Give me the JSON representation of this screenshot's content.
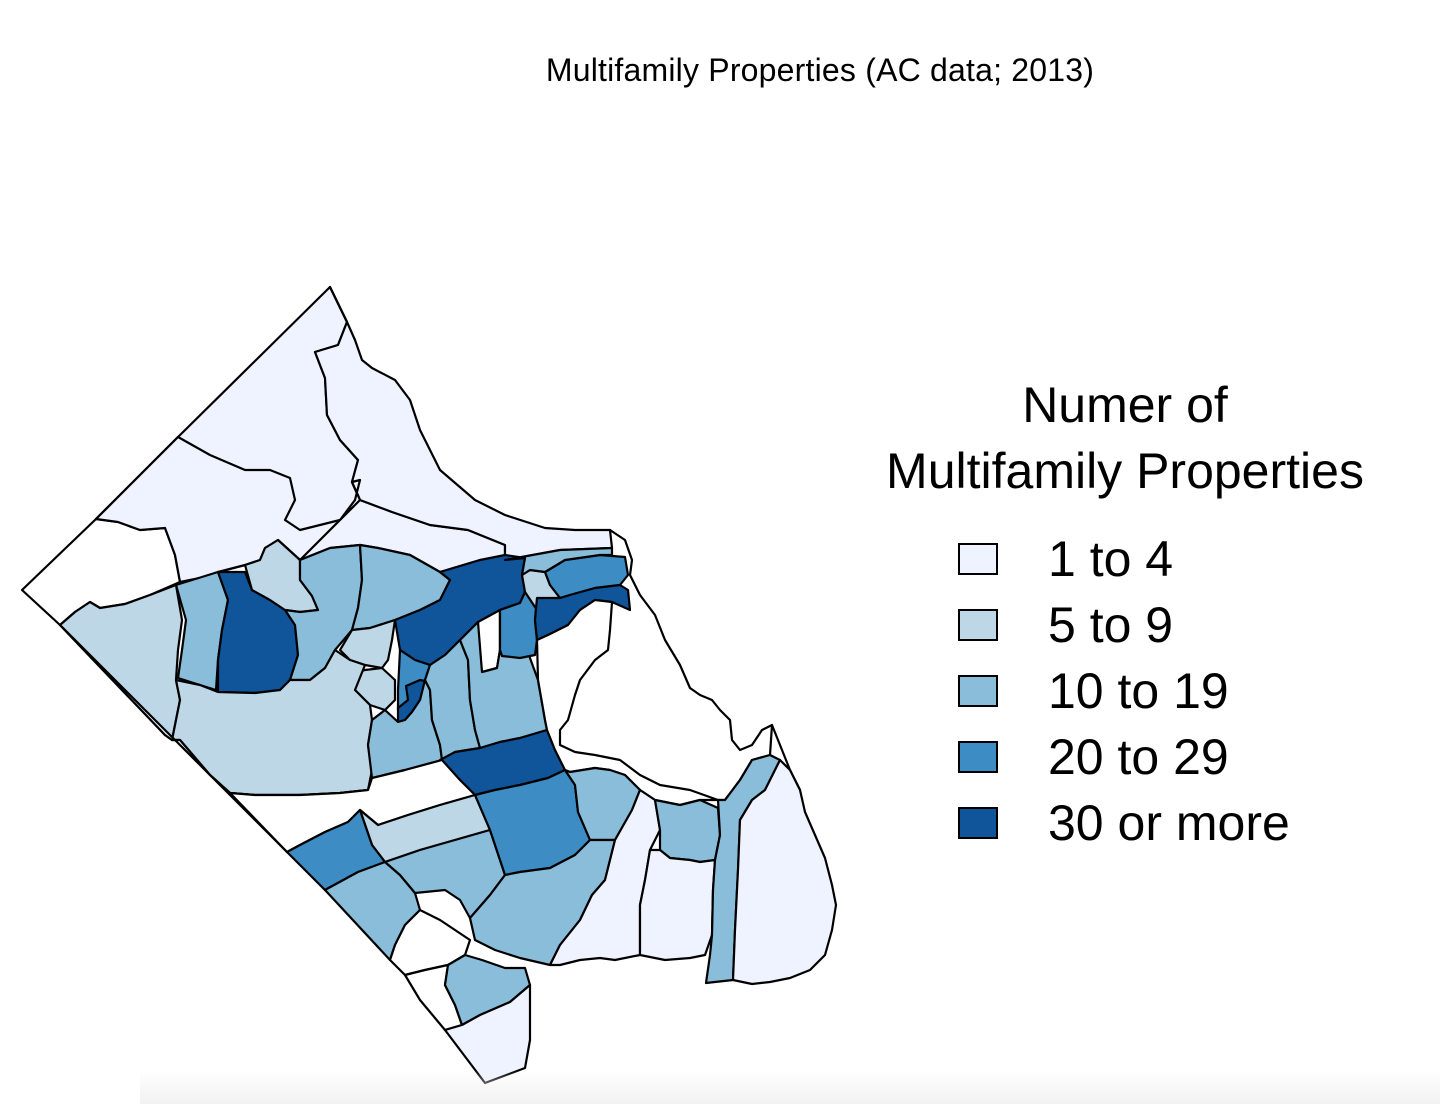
{
  "title": "Multifamily Properties (AC data; 2013)",
  "legend": {
    "title_line1": "Numer of",
    "title_line2": "Multifamily Properties",
    "items": [
      {
        "label": "1 to 4",
        "color": "#eff3ff"
      },
      {
        "label": "5 to 9",
        "color": "#bdd7e7"
      },
      {
        "label": "10 to 19",
        "color": "#89bdda"
      },
      {
        "label": "20 to 29",
        "color": "#3d8dc4"
      },
      {
        "label": "30 or more",
        "color": "#10549a"
      }
    ]
  },
  "regions": [
    {
      "name": "north-tip",
      "class": 0
    },
    {
      "name": "north-east-strip",
      "class": 0
    },
    {
      "name": "north-west-block",
      "class": -1
    },
    {
      "name": "north-center-block",
      "class": 0
    },
    {
      "name": "west-edge-block",
      "class": 1
    },
    {
      "name": "west-inner-block",
      "class": 2
    },
    {
      "name": "west-dark-block",
      "class": 4
    },
    {
      "name": "center-northwest-light",
      "class": 1
    },
    {
      "name": "center-north-mid",
      "class": 2
    },
    {
      "name": "center-north-block",
      "class": 2
    },
    {
      "name": "center-dark-band",
      "class": 4
    },
    {
      "name": "center-small-20",
      "class": 3
    },
    {
      "name": "center-dark-small",
      "class": 4
    },
    {
      "name": "center-small-light-a",
      "class": 1
    },
    {
      "name": "center-small-light-b",
      "class": 1
    },
    {
      "name": "center-white-pocket",
      "class": -1
    },
    {
      "name": "center-light-lower",
      "class": 1
    },
    {
      "name": "lower-left-pale",
      "class": 0
    },
    {
      "name": "central-mid-1",
      "class": 2
    },
    {
      "name": "central-mid-2",
      "class": 2
    },
    {
      "name": "central-mid-3",
      "class": 2
    },
    {
      "name": "central-20-strip",
      "class": 3
    },
    {
      "name": "central-dark-lower",
      "class": 4
    },
    {
      "name": "east-top-light",
      "class": 1
    },
    {
      "name": "east-top-20",
      "class": 3
    },
    {
      "name": "east-dark-band",
      "class": 4
    },
    {
      "name": "east-top-mid",
      "class": 2
    },
    {
      "name": "east-large-white",
      "class": -1
    },
    {
      "name": "white-band-middle",
      "class": -1
    },
    {
      "name": "south-light-band",
      "class": 1
    },
    {
      "name": "south-20-left",
      "class": 3
    },
    {
      "name": "south-mid-left",
      "class": 2
    },
    {
      "name": "south-mid-center",
      "class": 2
    },
    {
      "name": "south-20-center",
      "class": 3
    },
    {
      "name": "south-mid-right-a",
      "class": 2
    },
    {
      "name": "south-mid-right-b",
      "class": 2
    },
    {
      "name": "south-pale-right",
      "class": 0
    },
    {
      "name": "south-east-mid",
      "class": 2
    },
    {
      "name": "south-east-pale",
      "class": 0
    },
    {
      "name": "south-east-mid-strip",
      "class": 2
    },
    {
      "name": "south-east-pale-large",
      "class": 0
    },
    {
      "name": "south-white-a",
      "class": -1
    },
    {
      "name": "south-white-b",
      "class": -1
    },
    {
      "name": "south-mid-bottom",
      "class": 2
    },
    {
      "name": "south-tip",
      "class": 0
    }
  ]
}
